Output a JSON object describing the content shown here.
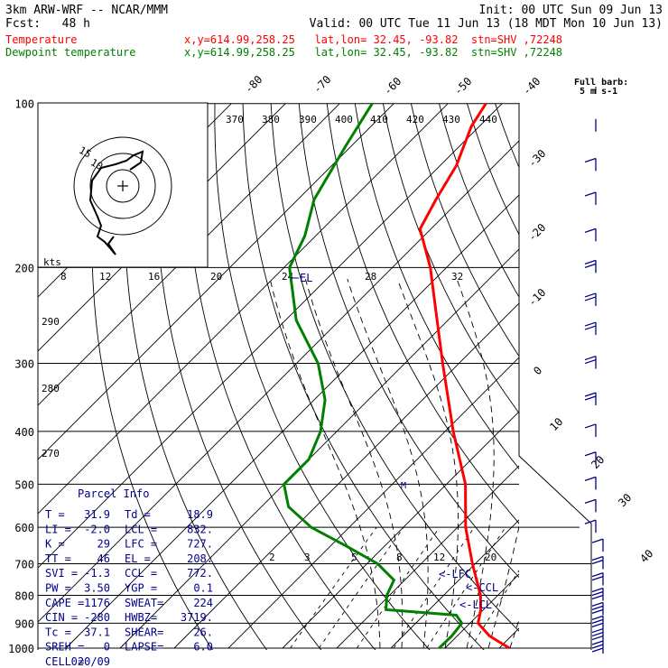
{
  "header": {
    "model": "3km ARW-WRF -- NCAR/MMM",
    "init": "Init: 00 UTC Sun 09 Jun 13",
    "fcst": "Fcst:   48 h",
    "valid": "Valid: 00 UTC Tue 11 Jun 13 (18 MDT Mon 10 Jun 13)",
    "legend": [
      {
        "label": "Temperature",
        "info": "x,y=614.99,258.25   lat,lon= 32.45, -93.82  stn=SHV ,72248",
        "color": "#ff0000"
      },
      {
        "label": "Dewpoint temperature",
        "info": "x,y=614.99,258.25   lat,lon= 32.45, -93.82  stn=SHV ,72248",
        "color": "#008000"
      }
    ]
  },
  "chart_data": {
    "type": "line",
    "pressure_levels": [
      "100",
      "200",
      "300",
      "400",
      "500",
      "600",
      "700",
      "800",
      "900",
      "1000"
    ],
    "isotherm_labels_top": [
      "-80",
      "-70",
      "-60",
      "-50",
      "-40"
    ],
    "isotherm_labels_right": [
      "-30",
      "-20",
      "-10",
      "0",
      "10",
      "20",
      "30",
      "40"
    ],
    "theta_labels": [
      "370",
      "380",
      "390",
      "400",
      "410",
      "420",
      "430",
      "440"
    ],
    "theta_labels_left": [
      "290",
      "280",
      "270"
    ],
    "mixing_ratio_labels": [
      "2",
      "3",
      "5",
      "8",
      "12",
      "20"
    ],
    "wind_speed_axis": {
      "unit": "kts",
      "labels": [
        "8",
        "12",
        "16",
        "20",
        "24",
        "28",
        "32"
      ]
    },
    "hodograph_ring_labels": [
      "15",
      "10"
    ],
    "annotations": {
      "el": "EL",
      "m": "M",
      "lfc": "<-LFC",
      "ccl": "<-CCL",
      "lcl": "<-LCL"
    },
    "barb_legend": {
      "title": "Full barb:",
      "value": "5 m s-1"
    },
    "series": [
      {
        "name": "Temperature",
        "color": "#ff0000",
        "points": [
          [
            1000,
            31.9
          ],
          [
            950,
            26.0
          ],
          [
            900,
            21.5
          ],
          [
            850,
            19.5
          ],
          [
            800,
            16.8
          ],
          [
            700,
            9.5
          ],
          [
            600,
            1.5
          ],
          [
            500,
            -6.5
          ],
          [
            400,
            -18.5
          ],
          [
            300,
            -33.0
          ],
          [
            250,
            -42.0
          ],
          [
            200,
            -53.0
          ],
          [
            170,
            -62.0
          ],
          [
            150,
            -64.5
          ],
          [
            130,
            -67.0
          ],
          [
            110,
            -71.5
          ],
          [
            100,
            -73.0
          ]
        ]
      },
      {
        "name": "Dewpoint temperature",
        "color": "#008000",
        "points": [
          [
            1000,
            18.9
          ],
          [
            950,
            19.0
          ],
          [
            900,
            18.5
          ],
          [
            870,
            16.0
          ],
          [
            850,
            2.0
          ],
          [
            800,
            -0.5
          ],
          [
            750,
            -2.0
          ],
          [
            700,
            -8.0
          ],
          [
            650,
            -17.0
          ],
          [
            600,
            -27.0
          ],
          [
            550,
            -35.0
          ],
          [
            500,
            -40.0
          ],
          [
            450,
            -40.0
          ],
          [
            400,
            -43.0
          ],
          [
            350,
            -48.0
          ],
          [
            300,
            -56.0
          ],
          [
            250,
            -68.0
          ],
          [
            200,
            -79.0
          ],
          [
            175,
            -82.0
          ],
          [
            150,
            -87.0
          ],
          [
            120,
            -91.0
          ],
          [
            100,
            -94.0
          ]
        ]
      }
    ]
  },
  "parcel_info": {
    "title": "Parcel Info",
    "rows": [
      [
        "T  =",
        "31.9",
        "Td =",
        "18.9"
      ],
      [
        "LI =",
        "-2.0",
        "LCL =",
        "832."
      ],
      [
        "K  =",
        "29",
        "LFC =",
        "727."
      ],
      [
        "TT =",
        "46",
        "EL  =",
        "208."
      ],
      [
        "SVI =",
        "-1.3",
        "CCL =",
        "772."
      ],
      [
        "PW =",
        "3.50",
        "YGP =",
        "0.1"
      ],
      [
        "CAPE =",
        "1176",
        "SWEAT=",
        "224"
      ],
      [
        "CIN =",
        "-280",
        "HWBZ=",
        "3719."
      ],
      [
        "Tc =",
        "37.1",
        "SHEAR=",
        "26."
      ],
      [
        "SREH =",
        "0",
        "LAPSE=",
        "6.0"
      ],
      [
        "CELL =",
        "020/09",
        "",
        ""
      ]
    ]
  }
}
